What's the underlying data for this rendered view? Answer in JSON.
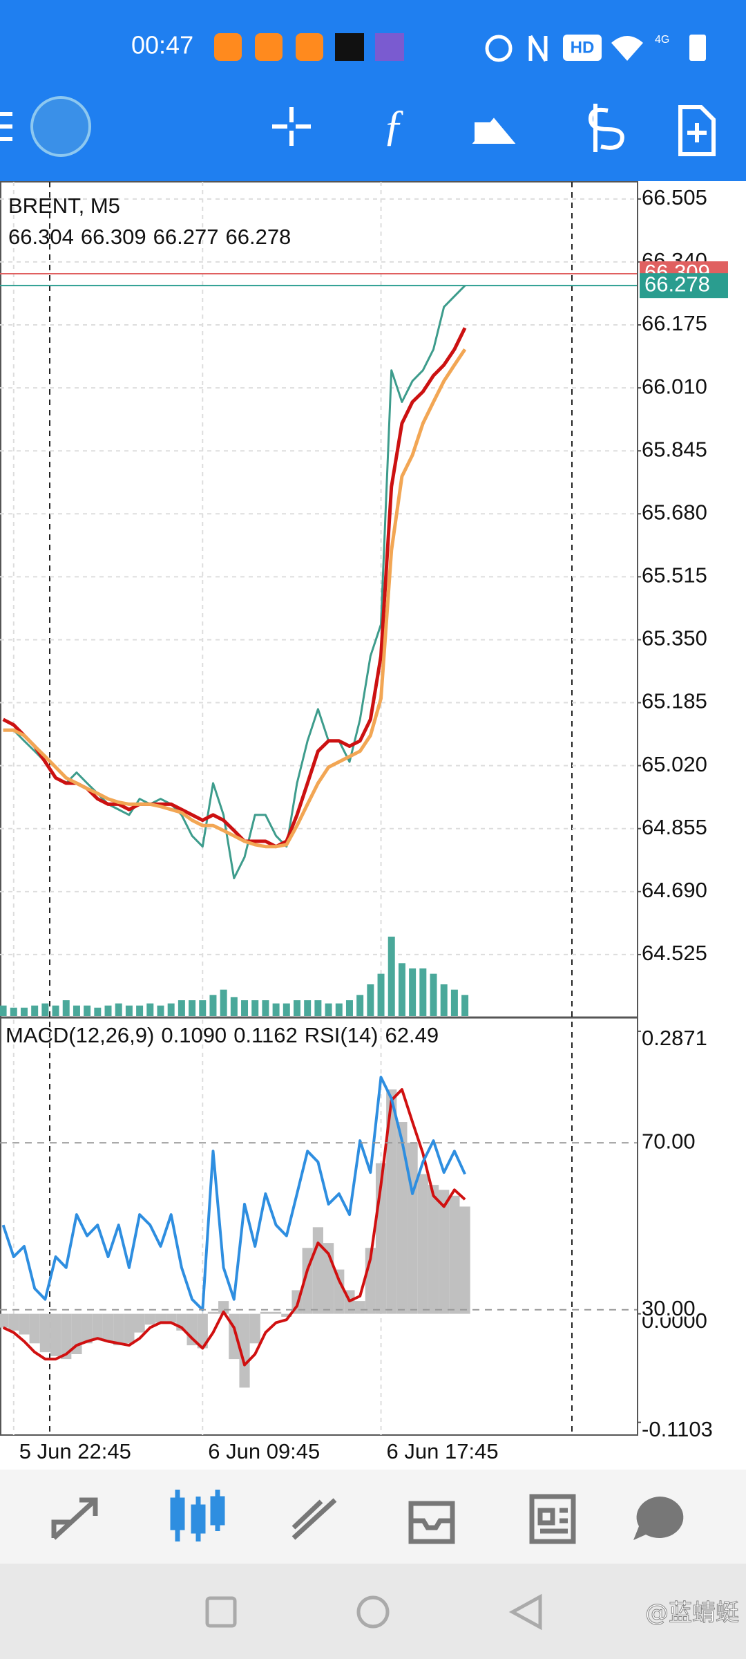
{
  "status_bar": {
    "time": "00:47",
    "network": "4G",
    "hd": "HD"
  },
  "chart_data": [
    {
      "type": "line",
      "title": "BRENT, M5",
      "ohlc": [
        66.304,
        66.309,
        66.277,
        66.278
      ],
      "bid": 66.278,
      "ask": 66.309,
      "categories": [
        null,
        "5 Jun 22:45",
        null,
        null,
        null,
        null,
        null,
        null,
        null,
        null,
        null,
        null,
        null,
        null,
        null,
        null,
        null,
        null,
        null,
        "6 Jun 09:45",
        null,
        null,
        null,
        null,
        null,
        null,
        null,
        null,
        null,
        null,
        null,
        null,
        null,
        null,
        null,
        null,
        "6 Jun 17:45",
        null,
        null,
        null,
        null,
        null,
        null,
        null,
        null
      ],
      "ylim": [
        64.36,
        66.55
      ],
      "yticks": [
        64.525,
        {
          "value": 64.69,
          "label": "64.690"
        },
        64.855,
        {
          "value": 65.02,
          "label": "65.020"
        },
        65.185,
        {
          "value": 65.35,
          "label": "65.350"
        },
        65.515,
        {
          "value": 65.68,
          "label": "65.680"
        },
        65.845,
        {
          "value": 66.01,
          "label": "66.010"
        },
        66.175,
        {
          "value": 66.34,
          "label": "66.340"
        },
        66.505
      ],
      "grid": true,
      "series": [
        {
          "name": "Close",
          "color": "#3d9c8c",
          "values": [
            65.113,
            65.113,
            65.085,
            65.058,
            65.03,
            64.988,
            64.974,
            65.002,
            64.974,
            64.947,
            64.919,
            64.905,
            64.891,
            64.933,
            64.919,
            64.933,
            64.919,
            64.891,
            64.836,
            64.808,
            64.974,
            64.891,
            64.725,
            64.78,
            64.891,
            64.891,
            64.836,
            64.808,
            64.974,
            65.085,
            65.168,
            65.085,
            65.085,
            65.03,
            65.141,
            65.307,
            65.39,
            66.056,
            65.973,
            66.028,
            66.056,
            66.111,
            66.222,
            66.25,
            66.278
          ]
        },
        {
          "name": "MA fast",
          "color": "#cc1111",
          "values": [
            65.141,
            65.127,
            65.099,
            65.071,
            65.03,
            64.988,
            64.974,
            64.974,
            64.96,
            64.933,
            64.919,
            64.919,
            64.905,
            64.919,
            64.919,
            64.919,
            64.919,
            64.905,
            64.891,
            64.877,
            64.891,
            64.877,
            64.85,
            64.822,
            64.822,
            64.822,
            64.808,
            64.822,
            64.891,
            64.974,
            65.058,
            65.085,
            65.085,
            65.071,
            65.085,
            65.141,
            65.307,
            65.751,
            65.917,
            65.973,
            66.0,
            66.042,
            66.07,
            66.111,
            66.167
          ]
        },
        {
          "name": "MA slow",
          "color": "#f2a654",
          "values": [
            65.113,
            65.113,
            65.099,
            65.071,
            65.044,
            65.016,
            64.988,
            64.974,
            64.96,
            64.947,
            64.933,
            64.924,
            64.919,
            64.919,
            64.919,
            64.913,
            64.905,
            64.897,
            64.877,
            64.863,
            64.863,
            64.85,
            64.836,
            64.822,
            64.813,
            64.808,
            64.808,
            64.813,
            64.863,
            64.919,
            64.974,
            65.016,
            65.03,
            65.044,
            65.058,
            65.099,
            65.196,
            65.584,
            65.778,
            65.834,
            65.917,
            65.973,
            66.028,
            66.07,
            66.111
          ]
        }
      ],
      "volume": {
        "color": "#4aa89a",
        "values": [
          10,
          8,
          8,
          10,
          12,
          10,
          15,
          10,
          10,
          8,
          10,
          12,
          10,
          10,
          12,
          10,
          12,
          15,
          15,
          15,
          20,
          25,
          18,
          15,
          15,
          15,
          12,
          12,
          15,
          15,
          15,
          12,
          12,
          15,
          20,
          30,
          40,
          75,
          50,
          45,
          45,
          40,
          30,
          25,
          20
        ]
      }
    },
    {
      "type": "indicator",
      "macd_label": "MACD(12,26,9)",
      "macd_values": [
        {
          "value": 0.109,
          "label": "0.1090"
        },
        0.1162
      ],
      "rsi_label": "RSI(14)",
      "rsi_value": 62.49,
      "ylim": [
        -0.1232,
        0.3011
      ],
      "yticks": [
        -0.1103,
        {
          "value": 0,
          "label": "0.0000"
        },
        0.2871
      ],
      "y2lim": [
        0,
        100
      ],
      "y2ticks": [
        {
          "value": 30,
          "label": "30.00"
        },
        {
          "value": 70,
          "label": "70.00"
        }
      ],
      "series": [
        {
          "name": "MACD",
          "color": "#c0c0c0",
          "values": [
            -0.014,
            -0.017,
            -0.021,
            -0.03,
            -0.039,
            -0.043,
            -0.046,
            -0.041,
            -0.03,
            -0.025,
            -0.028,
            -0.032,
            -0.03,
            -0.019,
            -0.011,
            -0.009,
            -0.009,
            -0.017,
            -0.032,
            -0.035,
            0.002,
            0.013,
            -0.046,
            -0.075,
            -0.03,
            0.002,
            0.002,
            -0.003,
            0.024,
            0.067,
            0.088,
            0.072,
            0.045,
            0.024,
            0.013,
            0.067,
            0.153,
            0.228,
            0.195,
            0.174,
            0.142,
            0.131,
            0.126,
            0.12,
            0.109
          ]
        },
        {
          "name": "Signal",
          "color": "#d01010",
          "values": [
            -0.014,
            -0.019,
            -0.028,
            -0.039,
            -0.046,
            -0.046,
            -0.041,
            -0.032,
            -0.028,
            -0.025,
            -0.028,
            -0.03,
            -0.032,
            -0.025,
            -0.014,
            -0.009,
            -0.009,
            -0.014,
            -0.025,
            -0.035,
            -0.019,
            0.002,
            -0.014,
            -0.052,
            -0.041,
            -0.019,
            -0.009,
            -0.006,
            0.008,
            0.045,
            0.072,
            0.061,
            0.034,
            0.013,
            0.018,
            0.056,
            0.131,
            0.217,
            0.228,
            0.195,
            0.163,
            0.12,
            0.109,
            0.126,
            0.1162
          ]
        },
        {
          "name": "RSI",
          "color": "#2e8ee0",
          "axis": "y2",
          "values": [
            50.3,
            42.7,
            45.2,
            35.1,
            32.5,
            42.7,
            40.1,
            52.8,
            47.7,
            50.3,
            42.7,
            50.3,
            40.1,
            52.8,
            50.3,
            45.2,
            52.8,
            40.1,
            32.5,
            30.0,
            68.0,
            40.1,
            32.5,
            55.3,
            45.2,
            57.8,
            50.3,
            47.7,
            57.8,
            68.0,
            65.4,
            55.3,
            57.8,
            52.8,
            70.5,
            62.9,
            85.7,
            80.6,
            70.5,
            57.8,
            65.4,
            70.5,
            62.9,
            68.0,
            62.49
          ]
        }
      ]
    }
  ],
  "watermark": "@蓝蜻蜓"
}
